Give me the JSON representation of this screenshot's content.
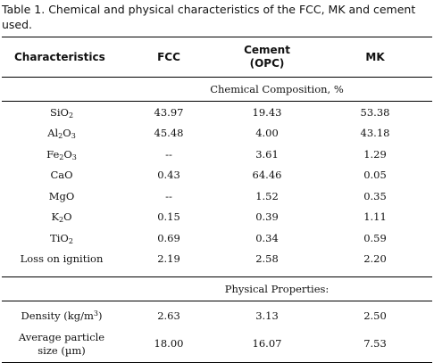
{
  "caption": "Table 1. Chemical and physical characteristics of the FCC, MK and cement used.",
  "headers": {
    "characteristics": "Characteristics",
    "fcc": "FCC",
    "cement_line1": "Cement",
    "cement_line2": "(OPC)",
    "mk": "MK"
  },
  "sections": {
    "chemical": "Chemical Composition, %",
    "physical": "Physical Properties:"
  },
  "chemical_rows": [
    {
      "base1": "SiO",
      "sub1": "2",
      "base2": "",
      "sub2": "",
      "fcc": "43.97",
      "cement": "19.43",
      "mk": "53.38"
    },
    {
      "base1": "Al",
      "sub1": "2",
      "base2": "O",
      "sub2": "3",
      "fcc": "45.48",
      "cement": "4.00",
      "mk": "43.18"
    },
    {
      "base1": "Fe",
      "sub1": "2",
      "base2": "O",
      "sub2": "3",
      "fcc": "--",
      "cement": "3.61",
      "mk": "1.29"
    },
    {
      "base1": "CaO",
      "sub1": "",
      "base2": "",
      "sub2": "",
      "fcc": "0.43",
      "cement": "64.46",
      "mk": "0.05"
    },
    {
      "base1": "MgO",
      "sub1": "",
      "base2": "",
      "sub2": "",
      "fcc": "--",
      "cement": "1.52",
      "mk": "0.35"
    },
    {
      "base1": "K",
      "sub1": "2",
      "base2": "O",
      "sub2": "",
      "fcc": "0.15",
      "cement": "0.39",
      "mk": "1.11"
    },
    {
      "base1": "TiO",
      "sub1": "2",
      "base2": "",
      "sub2": "",
      "fcc": "0.69",
      "cement": "0.34",
      "mk": "0.59"
    },
    {
      "base1": "Loss on ignition",
      "sub1": "",
      "base2": "",
      "sub2": "",
      "fcc": "2.19",
      "cement": "2.58",
      "mk": "2.20"
    }
  ],
  "physical_rows": {
    "density": {
      "label": "Density (kg/m",
      "sup": "3",
      "close": ")",
      "fcc": "2.63",
      "cement": "3.13",
      "mk": "2.50"
    },
    "particle": {
      "label_line1": "Average particle",
      "label_line2": "size (µm)",
      "fcc": "18.00",
      "cement": "16.07",
      "mk": "7.53"
    }
  }
}
